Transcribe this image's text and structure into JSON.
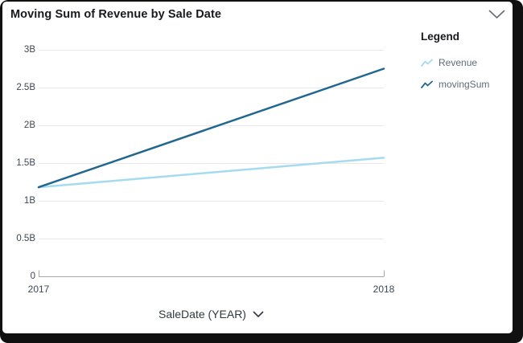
{
  "header": {
    "title": "Moving Sum of Revenue by Sale Date"
  },
  "legend": {
    "title": "Legend",
    "items": [
      {
        "label": "Revenue",
        "color": "#a5dbf0"
      },
      {
        "label": "movingSum",
        "color": "#23678f"
      }
    ]
  },
  "x_axis": {
    "title": "SaleDate (YEAR)"
  },
  "chart_data": {
    "type": "line",
    "title": "Moving Sum of Revenue by Sale Date",
    "xlabel": "SaleDate (YEAR)",
    "ylabel": "",
    "x": [
      "2017",
      "2018"
    ],
    "series": [
      {
        "name": "Revenue",
        "color": "#a5dbf0",
        "values": [
          1180000000,
          1570000000
        ]
      },
      {
        "name": "movingSum",
        "color": "#23678f",
        "values": [
          1180000000,
          2750000000
        ]
      }
    ],
    "ylim": [
      0,
      3000000000
    ],
    "y_ticks": [
      {
        "value": 0,
        "label": "0"
      },
      {
        "value": 500000000,
        "label": "0.5B"
      },
      {
        "value": 1000000000,
        "label": "1B"
      },
      {
        "value": 1500000000,
        "label": "1.5B"
      },
      {
        "value": 2000000000,
        "label": "2B"
      },
      {
        "value": 2500000000,
        "label": "2.5B"
      },
      {
        "value": 3000000000,
        "label": "3B"
      }
    ],
    "grid": true,
    "legend_position": "right"
  }
}
